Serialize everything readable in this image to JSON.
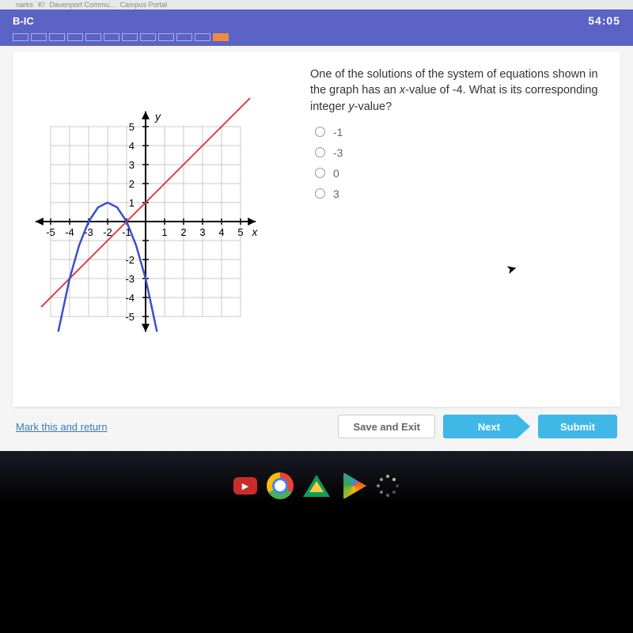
{
  "browser": {
    "tabs": [
      "narks",
      "K!",
      "Davenport Commu...",
      "Campus Portal"
    ]
  },
  "header": {
    "title": "B-IC",
    "timer": "54:05"
  },
  "progress": {
    "count": 12,
    "current_index": 11
  },
  "question": {
    "prompt_parts": [
      "One of the solutions of the system of equations shown in the graph has an ",
      "x",
      "-value of -4. What is its corresponding integer ",
      "y",
      "-value?"
    ],
    "options": [
      "-1",
      "-3",
      "0",
      "3"
    ]
  },
  "footer": {
    "mark": "Mark this and return",
    "save": "Save and Exit",
    "next": "Next",
    "submit": "Submit"
  },
  "graph": {
    "type": "line+parabola",
    "xlim": [
      -5.8,
      5.8
    ],
    "ylim": [
      -5.8,
      5.8
    ],
    "xtick_step": 1,
    "ytick_step": 1,
    "x_labels": [
      "-5",
      "-4",
      "-3",
      "-2",
      "-1",
      "",
      "1",
      "2",
      "3",
      "4",
      "5"
    ],
    "y_labels_pos": [
      "5",
      "4",
      "3",
      "2",
      "1"
    ],
    "y_labels_neg": [
      "-2",
      "-3",
      "-4",
      "-5"
    ],
    "x_axis_label": "x",
    "y_axis_label": "y",
    "background_color": "#ffffff",
    "grid_color": "#c8c8c8",
    "axis_color": "#000000",
    "line": {
      "color": "#d94040",
      "width": 2,
      "points": [
        [
          -5.5,
          -4.5
        ],
        [
          5.5,
          6.5
        ]
      ],
      "description": "slope 1 intercept 1"
    },
    "parabola": {
      "color": "#3a50c9",
      "width": 2.5,
      "vertex": [
        -2,
        1
      ],
      "a": -1,
      "points": [
        [
          -4.6,
          -5.8
        ],
        [
          -4,
          -3
        ],
        [
          -3.5,
          -1.25
        ],
        [
          -3,
          0
        ],
        [
          -2.5,
          0.75
        ],
        [
          -2,
          1
        ],
        [
          -1.5,
          0.75
        ],
        [
          -1,
          0
        ],
        [
          -0.5,
          -1.25
        ],
        [
          0,
          -3
        ],
        [
          0.6,
          -5.8
        ]
      ]
    },
    "label_fontsize": 13,
    "axis_label_fontsize": 14
  },
  "colors": {
    "header_bg": "#5b63c4",
    "button_blue": "#3fb8e8",
    "link": "#3a7bb8"
  }
}
